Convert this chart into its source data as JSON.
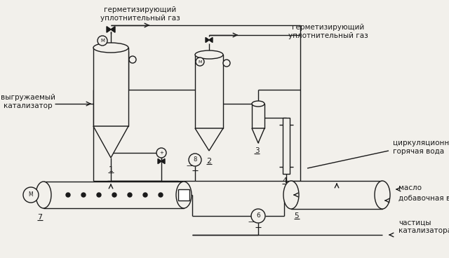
{
  "bg_color": "#f2f0eb",
  "line_color": "#1a1a1a",
  "text_color": "#1a1a1a",
  "labels": {
    "vygruzhaemy": "выгружаемый\nкатализатор",
    "germet1": "герметизирующий\nуплотнительный газ",
    "germet2": "герметизирующий\nуплотнительный газ",
    "tsirk": "циркуляционная\nгорячая вода",
    "maslo": "масло",
    "dobavochnaya": "добавочная вода",
    "chastitsy": "частицы\nкатализатора"
  },
  "figsize": [
    6.4,
    3.68
  ],
  "dpi": 100
}
